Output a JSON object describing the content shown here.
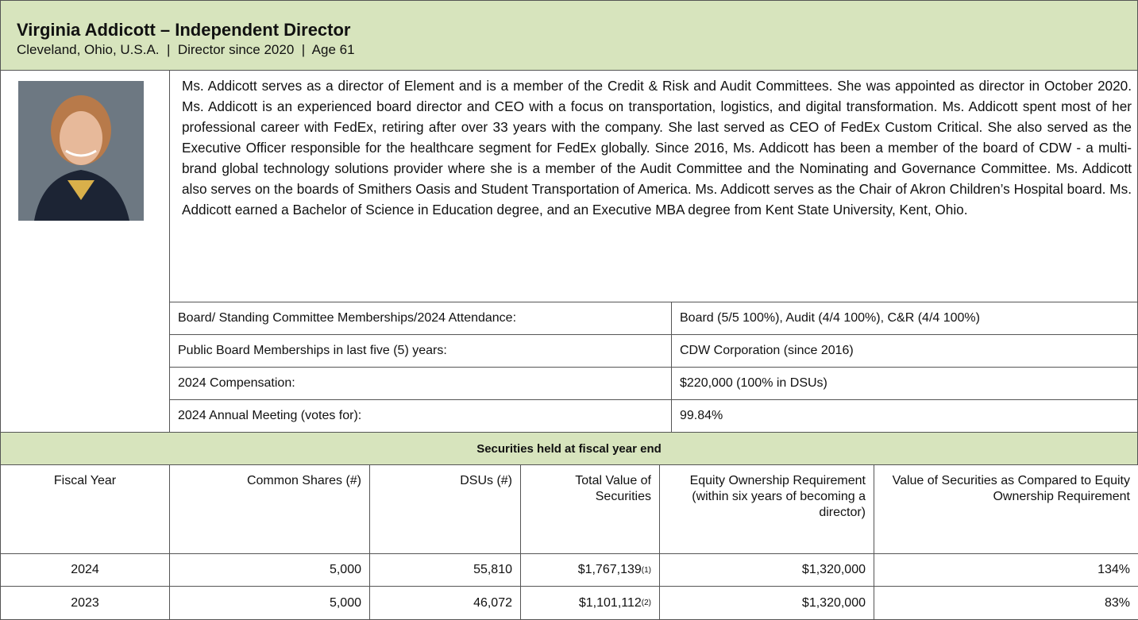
{
  "header": {
    "title": "Virginia Addicott – Independent Director",
    "subtitle": "Cleveland, Ohio, U.S.A.  |  Director since 2020  |  Age 61"
  },
  "bio": "Ms. Addicott serves as a director of Element and is a member of the Credit & Risk and Audit Committees. She was appointed as director in October 2020. Ms. Addicott is an experienced board director and CEO with a focus on transportation, logistics, and digital transformation. Ms. Addicott spent most of her professional career with FedEx, retiring after over 33 years with the company. She last served as CEO of FedEx Custom Critical. She also served as the Executive Officer responsible for the healthcare segment for FedEx globally. Since 2016, Ms. Addicott has been a member of the board of CDW - a multi-brand global technology solutions provider where she is a member of the Audit Committee and the Nominating and Governance Committee. Ms. Addicott also serves on the boards of Smithers Oasis and Student Transportation of America. Ms. Addicott serves as the Chair of Akron Children’s Hospital board. Ms. Addicott earned a Bachelor of Science in Education degree, and an Executive MBA degree from Kent State University, Kent, Ohio.",
  "memberships": {
    "rows": [
      [
        "Board/ Standing Committee Memberships/2024 Attendance:",
        "Board (5/5 100%), Audit (4/4 100%), C&R (4/4 100%)"
      ],
      [
        "Public Board Memberships in last five (5) years:",
        "CDW Corporation (since 2016)"
      ],
      [
        "2024 Compensation:",
        "$220,000 (100% in DSUs)"
      ],
      [
        "2024 Annual Meeting (votes for):",
        "99.84%"
      ]
    ]
  },
  "securities": {
    "title": "Securities held at fiscal year end",
    "columns": [
      "Fiscal Year",
      "Common Shares (#)",
      "DSUs (#)",
      "Total Value of Securities",
      "Equity Ownership Requirement (within six years of becoming a director)",
      "Value of Securities as Compared to Equity Ownership Requirement"
    ],
    "rows": [
      [
        "2024",
        "5,000",
        "55,810",
        {
          "text": "$1,767,139",
          "note": "(1)"
        },
        "$1,320,000",
        "134%"
      ],
      [
        "2023",
        "5,000",
        "46,072",
        {
          "text": "$1,101,112",
          "note": "(2)"
        },
        "$1,320,000",
        "83%"
      ]
    ]
  }
}
